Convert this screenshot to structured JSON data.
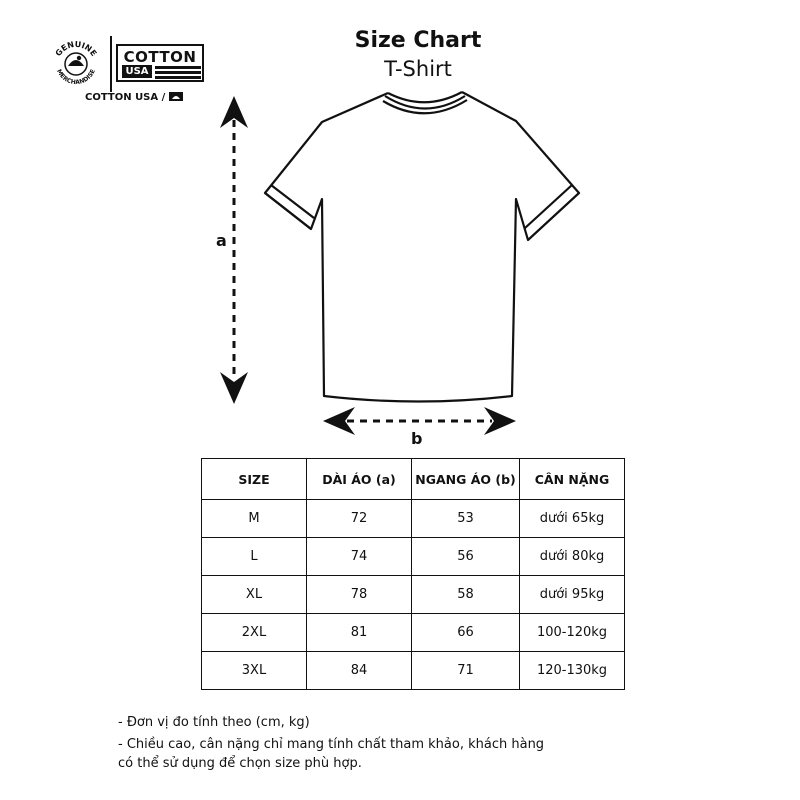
{
  "header": {
    "title": "Size Chart",
    "subtitle": "T-Shirt"
  },
  "brand": {
    "badge_top_text": "GENUINE",
    "badge_bottom_text": "MERCHANDISE",
    "cotton_word": "COTTON",
    "usa_word": "USA",
    "caption": "COTTON USA / "
  },
  "diagram": {
    "label_a": "a",
    "label_b": "b"
  },
  "table": {
    "headers": [
      "SIZE",
      "DÀI ÁO (a)",
      "NGANG ÁO (b)",
      "CÂN NẶNG"
    ],
    "rows": [
      [
        "M",
        "72",
        "53",
        "dưới 65kg"
      ],
      [
        "L",
        "74",
        "56",
        "dưới 80kg"
      ],
      [
        "XL",
        "78",
        "58",
        "dưới 95kg"
      ],
      [
        "2XL",
        "81",
        "66",
        "100-120kg"
      ],
      [
        "3XL",
        "84",
        "71",
        "120-130kg"
      ]
    ]
  },
  "notes": {
    "line1": "- Đơn vị đo tính theo (cm, kg)",
    "line2": "- Chiều cao, cân nặng chỉ mang tính chất tham khảo, khách hàng",
    "line3": "có thể sử dụng để chọn size phù hợp."
  },
  "colors": {
    "ink": "#111111",
    "background": "#ffffff"
  }
}
